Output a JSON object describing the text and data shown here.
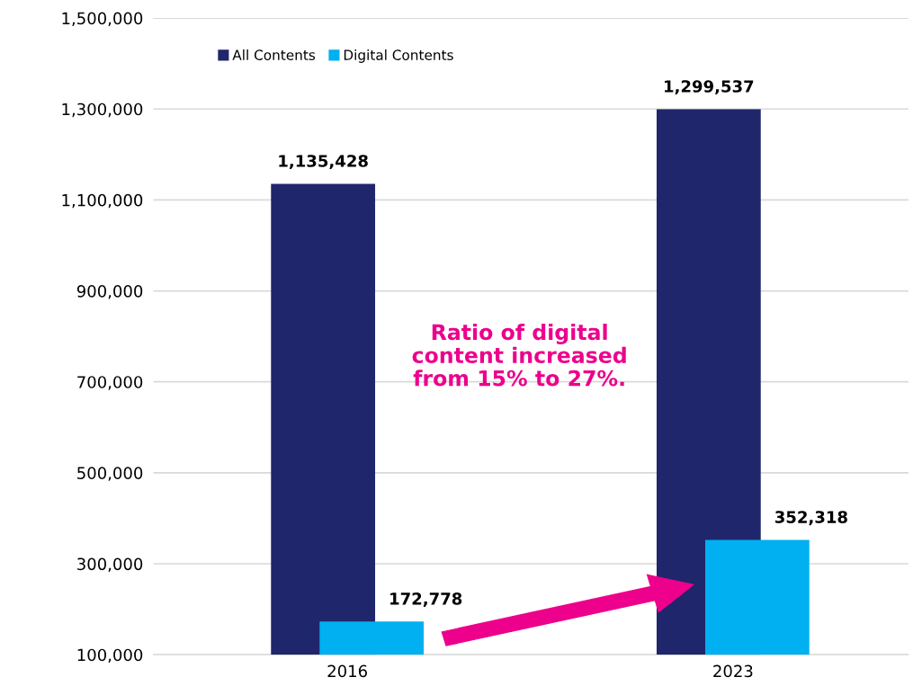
{
  "chart_data": {
    "type": "bar",
    "categories": [
      "2016",
      "2023"
    ],
    "series": [
      {
        "name": "All Contents",
        "color": "#1f266b",
        "values": [
          1135428,
          1299537
        ],
        "value_labels": [
          "1,135,428",
          "1,299,537"
        ]
      },
      {
        "name": "Digital Contents",
        "color": "#00b0f0",
        "values": [
          172778,
          352318
        ],
        "value_labels": [
          "172,778",
          "352,318"
        ]
      }
    ],
    "ylim": [
      100000,
      1500000
    ],
    "yticks": [
      {
        "value": 100000,
        "label": "100,000"
      },
      {
        "value": 300000,
        "label": "300,000"
      },
      {
        "value": 500000,
        "label": "500,000"
      },
      {
        "value": 700000,
        "label": "700,000"
      },
      {
        "value": 900000,
        "label": "900,000"
      },
      {
        "value": 1100000,
        "label": "1,100,000"
      },
      {
        "value": 1300000,
        "label": "1,300,000"
      },
      {
        "value": 1500000,
        "label": "1,500,000"
      }
    ],
    "grid": "y",
    "legend": "top left",
    "annotations": [
      "Ratio of digital\ncontent increased\nfrom 15% to 27%."
    ]
  }
}
